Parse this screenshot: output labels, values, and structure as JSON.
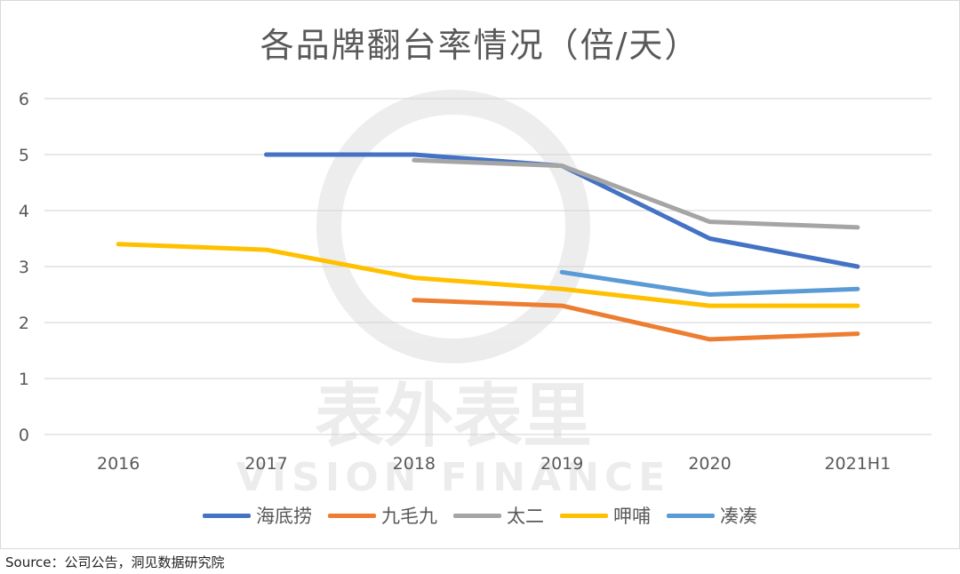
{
  "title": "各品牌翻台率情况（倍/天）",
  "source": "Source：公司公告，洞见数据研究院",
  "watermark": {
    "line1": "表外表里",
    "line2": "VISION FINANCE"
  },
  "chart_data": {
    "type": "line",
    "title": "各品牌翻台率情况（倍/天）",
    "categories": [
      "2016",
      "2017",
      "2018",
      "2019",
      "2020",
      "2021H1"
    ],
    "ylim": [
      0,
      6
    ],
    "yticks": [
      "0",
      "1",
      "2",
      "3",
      "4",
      "5",
      "6"
    ],
    "grid": true,
    "legend": "bottom",
    "series": [
      {
        "name": "海底捞",
        "color": "#4472C4",
        "values": [
          null,
          5.0,
          5.0,
          4.8,
          3.5,
          3.0
        ]
      },
      {
        "name": "九毛九",
        "color": "#ED7D31",
        "values": [
          null,
          null,
          2.4,
          2.3,
          1.7,
          1.8
        ]
      },
      {
        "name": "太二",
        "color": "#A5A5A5",
        "values": [
          null,
          null,
          4.9,
          4.8,
          3.8,
          3.7
        ]
      },
      {
        "name": "呷哺",
        "color": "#FFC000",
        "values": [
          3.4,
          3.3,
          2.8,
          2.6,
          2.3,
          2.3
        ]
      },
      {
        "name": "凑凑",
        "color": "#5B9BD5",
        "values": [
          null,
          null,
          null,
          2.9,
          2.5,
          2.6
        ]
      }
    ]
  }
}
